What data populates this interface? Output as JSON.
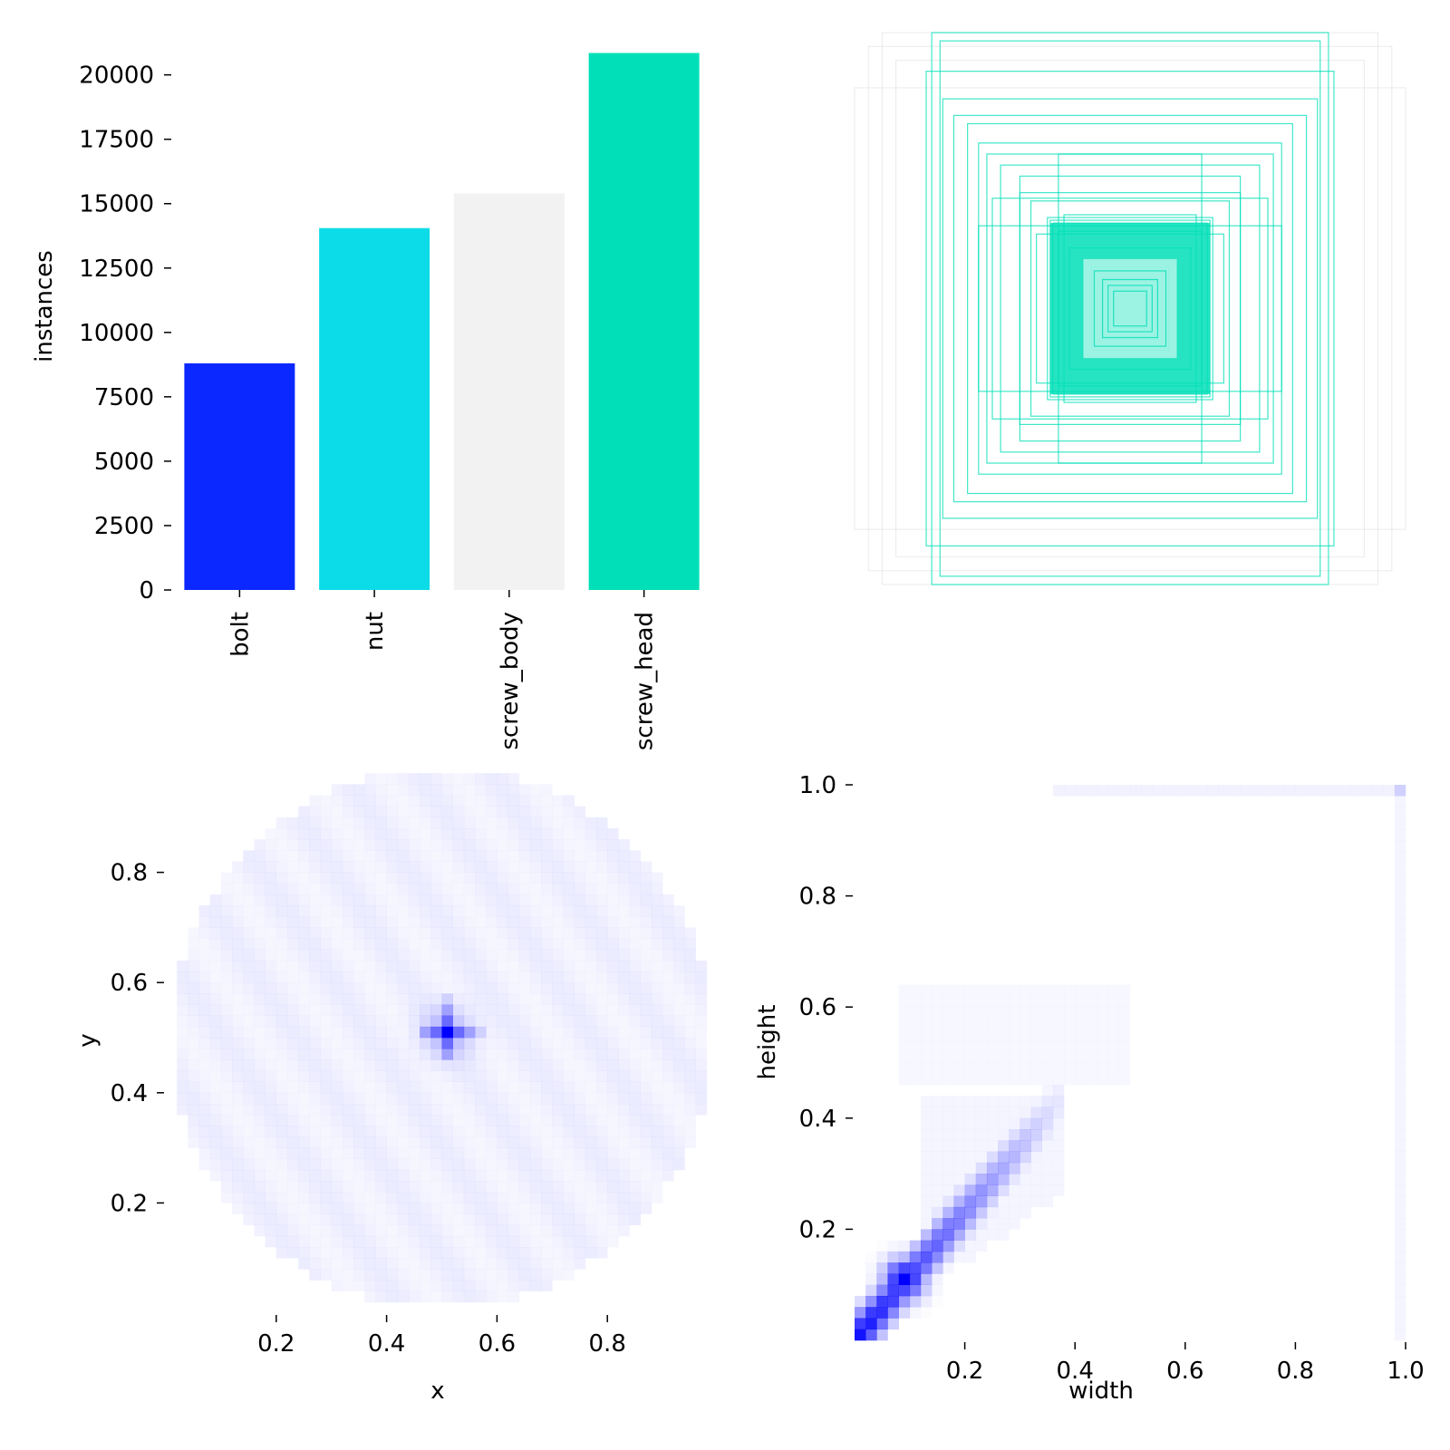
{
  "chart_data": [
    {
      "type": "bar",
      "title": "",
      "xlabel": "",
      "ylabel": "instances",
      "categories": [
        "bolt",
        "nut",
        "screw_body",
        "screw_head"
      ],
      "values": [
        8800,
        14050,
        15400,
        20850
      ],
      "colors": [
        "#0a28ff",
        "#0cdce8",
        "#f2f2f2",
        "#00dfb7"
      ],
      "ylim": [
        0,
        21500
      ],
      "yticks": [
        0,
        2500,
        5000,
        7500,
        10000,
        12500,
        15000,
        17500,
        20000
      ],
      "ytick_labels": [
        "0",
        "2500",
        "5000",
        "7500",
        "10000",
        "12500",
        "15000",
        "17500",
        "20000"
      ],
      "grid": false,
      "legend": "none"
    },
    {
      "type": "box_overlay",
      "title": "",
      "description_of_marks": "centered label rectangles (normalized width × height)",
      "color": "#00dfb7",
      "boxes": [
        {
          "w": 0.3,
          "h": 0.33
        },
        {
          "w": 0.29,
          "h": 0.32
        },
        {
          "w": 0.28,
          "h": 0.31
        },
        {
          "w": 0.26,
          "h": 0.28
        },
        {
          "w": 0.22,
          "h": 0.22
        },
        {
          "w": 0.17,
          "h": 0.18
        },
        {
          "w": 0.14,
          "h": 0.15
        },
        {
          "w": 0.1,
          "h": 0.11
        },
        {
          "w": 0.06,
          "h": 0.07
        },
        {
          "w": 0.36,
          "h": 0.39
        },
        {
          "w": 0.4,
          "h": 0.42
        },
        {
          "w": 0.47,
          "h": 0.52
        },
        {
          "w": 0.52,
          "h": 0.56
        },
        {
          "w": 0.55,
          "h": 0.6
        },
        {
          "w": 0.59,
          "h": 0.67
        },
        {
          "w": 0.64,
          "h": 0.7
        },
        {
          "w": 0.68,
          "h": 0.76
        },
        {
          "w": 0.74,
          "h": 0.86
        },
        {
          "w": 0.69,
          "h": 0.97
        },
        {
          "w": 0.72,
          "h": 1.0
        },
        {
          "w": 0.26,
          "h": 0.56
        },
        {
          "w": 0.55,
          "h": 0.3
        },
        {
          "w": 0.5,
          "h": 0.4
        },
        {
          "w": 0.4,
          "h": 0.48
        },
        {
          "w": 0.34,
          "h": 0.27
        },
        {
          "w": 0.24,
          "h": 0.34
        }
      ],
      "faint_boxes": [
        {
          "w": 0.95,
          "h": 0.95
        },
        {
          "w": 1.0,
          "h": 0.8
        },
        {
          "w": 0.9,
          "h": 1.0
        },
        {
          "w": 0.85,
          "h": 0.9
        }
      ]
    },
    {
      "type": "heatmap",
      "title": "",
      "xlabel": "x",
      "ylabel": "y",
      "xlim": [
        0.0,
        1.0
      ],
      "ylim": [
        0.0,
        1.0
      ],
      "xticks": [
        0.2,
        0.4,
        0.6,
        0.8
      ],
      "yticks": [
        0.2,
        0.4,
        0.6,
        0.8
      ],
      "color": "#0000ff",
      "peak": {
        "x": 0.51,
        "y": 0.51
      },
      "grid": false
    },
    {
      "type": "heatmap",
      "title": "",
      "xlabel": "width",
      "ylabel": "height",
      "xlim": [
        0.0,
        1.0
      ],
      "ylim": [
        0.0,
        1.0
      ],
      "xticks": [
        0.2,
        0.4,
        0.6,
        0.8,
        1.0
      ],
      "yticks": [
        0.2,
        0.4,
        0.6,
        0.8,
        1.0
      ],
      "color": "#0000ff",
      "peak": {
        "x": 0.09,
        "y": 0.11
      },
      "grid": false
    }
  ]
}
